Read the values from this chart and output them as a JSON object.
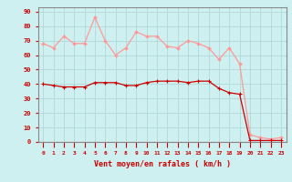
{
  "x": [
    0,
    1,
    2,
    3,
    4,
    5,
    6,
    7,
    8,
    9,
    10,
    11,
    12,
    13,
    14,
    15,
    16,
    17,
    18,
    19,
    20,
    21,
    22,
    23
  ],
  "wind_avg": [
    40,
    39,
    38,
    38,
    38,
    41,
    41,
    41,
    39,
    39,
    41,
    42,
    42,
    42,
    41,
    42,
    42,
    37,
    34,
    33,
    1,
    1,
    1,
    1
  ],
  "wind_gust": [
    68,
    65,
    73,
    68,
    68,
    86,
    70,
    60,
    65,
    76,
    73,
    73,
    66,
    65,
    70,
    68,
    65,
    57,
    65,
    54,
    5,
    3,
    2,
    3
  ],
  "bg_color": "#cff0f0",
  "grid_color": "#b0d8d8",
  "avg_color": "#cc0000",
  "gust_color": "#ff9999",
  "xlabel": "Vent moyen/en rafales ( km/h )",
  "ylabel_ticks": [
    0,
    10,
    20,
    30,
    40,
    50,
    60,
    70,
    80,
    90
  ],
  "xlim": [
    -0.5,
    23.5
  ],
  "ylim": [
    0,
    93
  ],
  "tick_color": "#cc0000",
  "label_color": "#cc0000",
  "axis_color": "#888888",
  "spine_color": "#888888"
}
